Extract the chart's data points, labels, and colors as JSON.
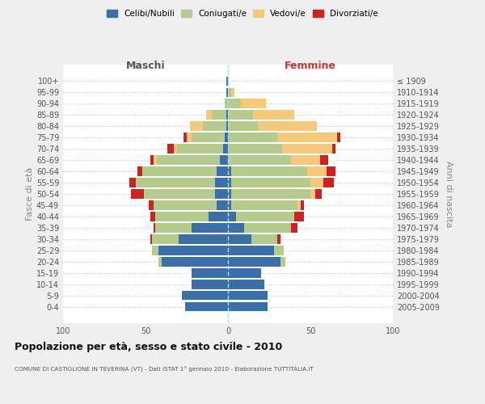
{
  "age_groups": [
    "100+",
    "95-99",
    "90-94",
    "85-89",
    "80-84",
    "75-79",
    "70-74",
    "65-69",
    "60-64",
    "55-59",
    "50-54",
    "45-49",
    "40-44",
    "35-39",
    "30-34",
    "25-29",
    "20-24",
    "15-19",
    "10-14",
    "5-9",
    "0-4"
  ],
  "birth_years": [
    "≤ 1909",
    "1910-1914",
    "1915-1919",
    "1920-1924",
    "1925-1929",
    "1930-1934",
    "1935-1939",
    "1940-1944",
    "1945-1949",
    "1950-1954",
    "1955-1959",
    "1960-1964",
    "1965-1969",
    "1970-1974",
    "1975-1979",
    "1980-1984",
    "1985-1989",
    "1990-1994",
    "1995-1999",
    "2000-2004",
    "2005-2009"
  ],
  "colors": {
    "celibi": "#3a6fa8",
    "coniugati": "#b5cb8e",
    "vedovi": "#f5c97a",
    "divorziati": "#cc2222"
  },
  "males": {
    "celibi": [
      1,
      1,
      0,
      1,
      1,
      2,
      3,
      5,
      7,
      8,
      8,
      7,
      12,
      22,
      30,
      42,
      40,
      22,
      22,
      28,
      26
    ],
    "coniugati": [
      0,
      0,
      2,
      9,
      14,
      20,
      28,
      38,
      45,
      48,
      43,
      38,
      32,
      22,
      16,
      4,
      2,
      0,
      0,
      0,
      0
    ],
    "vedovi": [
      0,
      0,
      0,
      3,
      8,
      3,
      2,
      2,
      0,
      0,
      0,
      0,
      0,
      0,
      0,
      0,
      0,
      0,
      0,
      0,
      0
    ],
    "divorziati": [
      0,
      0,
      0,
      0,
      0,
      2,
      4,
      2,
      3,
      4,
      8,
      3,
      3,
      1,
      1,
      0,
      0,
      0,
      0,
      0,
      0
    ]
  },
  "females": {
    "nubili": [
      0,
      0,
      0,
      0,
      0,
      0,
      0,
      0,
      2,
      2,
      2,
      2,
      5,
      10,
      14,
      28,
      32,
      20,
      22,
      24,
      24
    ],
    "coniugate": [
      0,
      2,
      8,
      15,
      18,
      30,
      33,
      38,
      46,
      48,
      48,
      40,
      35,
      28,
      16,
      6,
      3,
      0,
      0,
      0,
      0
    ],
    "vedove": [
      0,
      2,
      15,
      25,
      36,
      36,
      30,
      18,
      12,
      8,
      3,
      2,
      0,
      0,
      0,
      0,
      0,
      0,
      0,
      0,
      0
    ],
    "divorziate": [
      0,
      0,
      0,
      0,
      0,
      2,
      2,
      5,
      5,
      6,
      4,
      2,
      6,
      4,
      2,
      0,
      0,
      0,
      0,
      0,
      0
    ]
  },
  "xlim": 100,
  "title": "Popolazione per età, sesso e stato civile - 2010",
  "subtitle": "COMUNE DI CASTIGLIONE IN TEVERINA (VT) - Dati ISTAT 1° gennaio 2010 - Elaborazione TUTTITALIA.IT",
  "ylabel_left": "Fasce di età",
  "ylabel_right": "Anni di nascita",
  "xlabel_left": "Maschi",
  "xlabel_right": "Femmine",
  "legend_labels": [
    "Celibi/Nubili",
    "Coniugati/e",
    "Vedovi/e",
    "Divorziati/e"
  ],
  "bg_color": "#efefef",
  "plot_bg": "#ffffff"
}
